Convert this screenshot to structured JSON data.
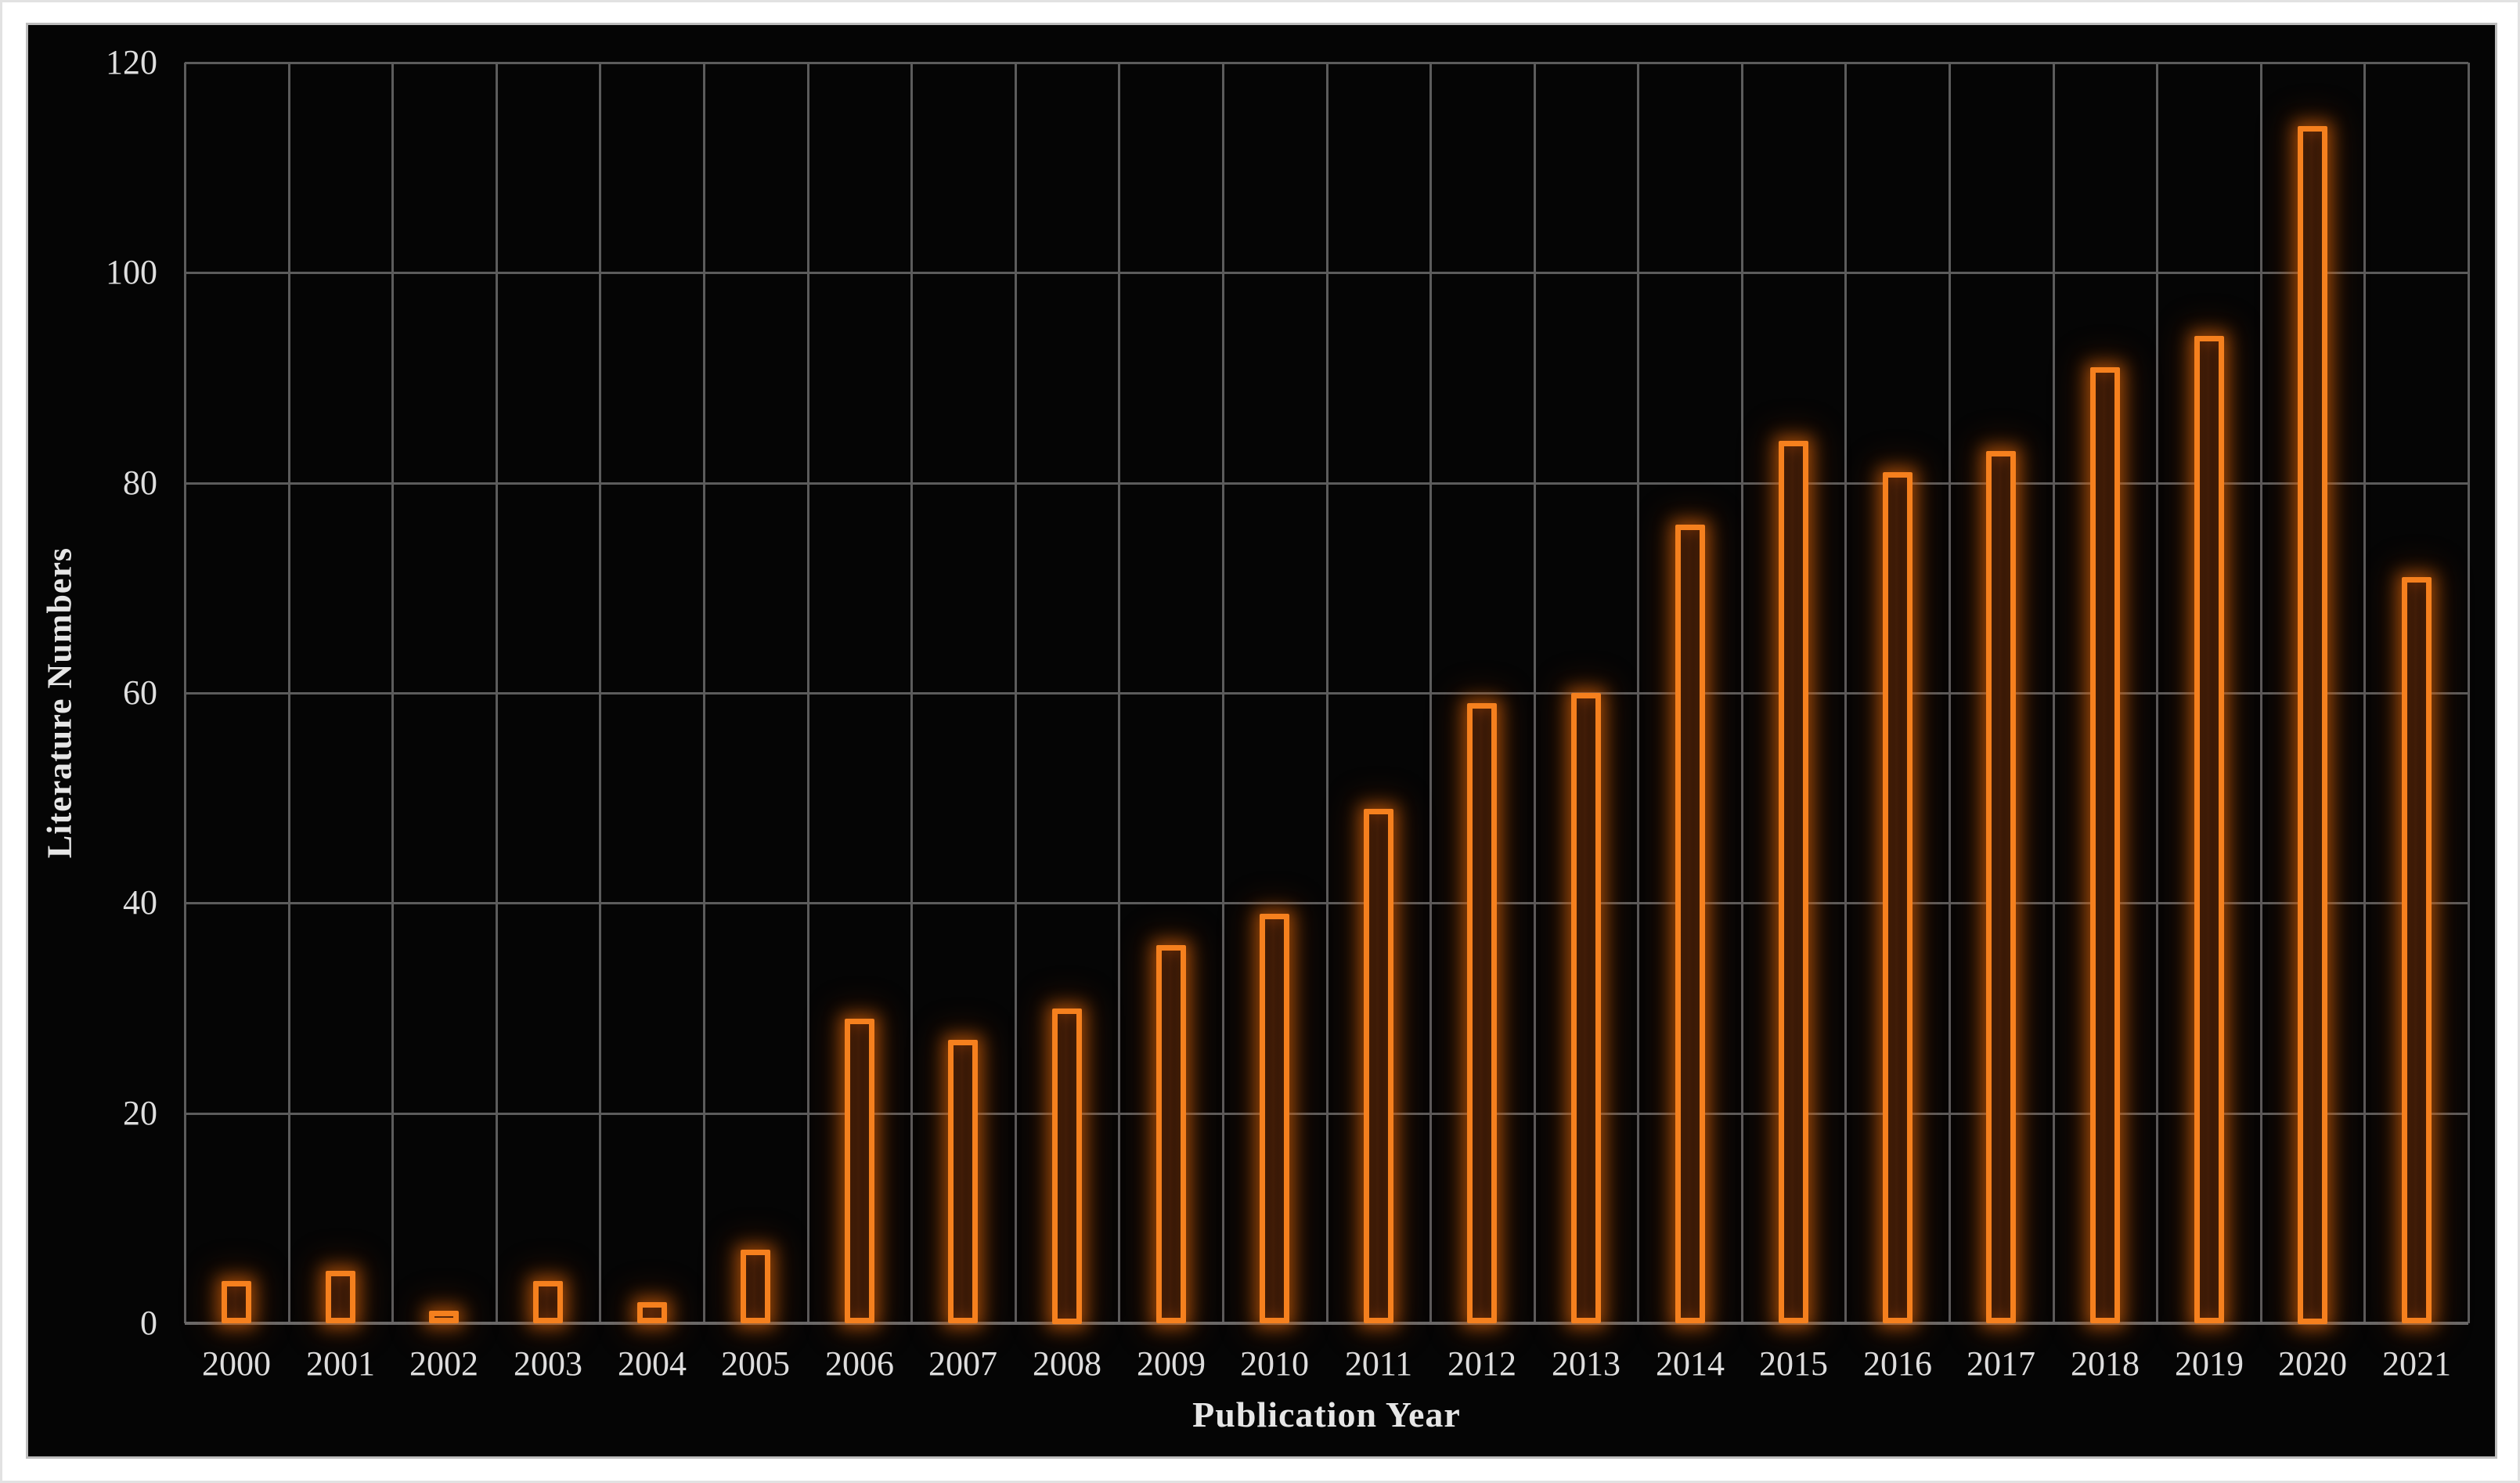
{
  "chart_data": {
    "type": "bar",
    "title": "",
    "xlabel": "Publication Year",
    "ylabel": "Literature Numbers",
    "categories": [
      "2000",
      "2001",
      "2002",
      "2003",
      "2004",
      "2005",
      "2006",
      "2007",
      "2008",
      "2009",
      "2010",
      "2011",
      "2012",
      "2013",
      "2014",
      "2015",
      "2016",
      "2017",
      "2018",
      "2019",
      "2020",
      "2021"
    ],
    "values": [
      4,
      5,
      1,
      4,
      2,
      7,
      29,
      27,
      30,
      36,
      39,
      49,
      59,
      60,
      76,
      84,
      81,
      83,
      91,
      94,
      114,
      71
    ],
    "ylim": [
      0,
      120
    ],
    "yticks": [
      0,
      20,
      40,
      60,
      80,
      100,
      120
    ],
    "grid": true,
    "legend_position": "none",
    "colors": {
      "panel_background": "#050505",
      "bar_border": "#f5801e",
      "bar_glow": "#eb6e0c",
      "gridline": "#5c5c5c",
      "axis_line": "#6a6a6a",
      "tick_label": "#dedede",
      "axis_title": "#e6e6e6",
      "outer_frame": "#ffffff"
    }
  }
}
